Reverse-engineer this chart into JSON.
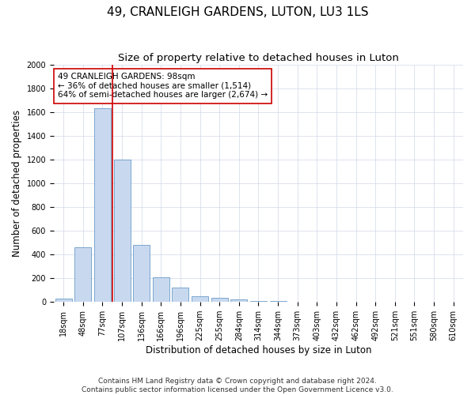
{
  "title": "49, CRANLEIGH GARDENS, LUTON, LU3 1LS",
  "subtitle": "Size of property relative to detached houses in Luton",
  "xlabel": "Distribution of detached houses by size in Luton",
  "ylabel": "Number of detached properties",
  "categories": [
    "18sqm",
    "48sqm",
    "77sqm",
    "107sqm",
    "136sqm",
    "166sqm",
    "196sqm",
    "225sqm",
    "255sqm",
    "284sqm",
    "314sqm",
    "344sqm",
    "373sqm",
    "403sqm",
    "432sqm",
    "462sqm",
    "492sqm",
    "521sqm",
    "551sqm",
    "580sqm",
    "610sqm"
  ],
  "values": [
    30,
    460,
    1630,
    1200,
    480,
    210,
    120,
    50,
    35,
    20,
    10,
    5,
    2,
    1,
    0,
    0,
    0,
    0,
    0,
    0,
    0
  ],
  "bar_color": "#c8d9ef",
  "bar_edge_color": "#6b9bc8",
  "vline_color": "#cc0000",
  "annotation_text": "49 CRANLEIGH GARDENS: 98sqm\n← 36% of detached houses are smaller (1,514)\n64% of semi-detached houses are larger (2,674) →",
  "annotation_box_color": "#ffffff",
  "annotation_box_edge_color": "#cc0000",
  "ylim": [
    0,
    2000
  ],
  "yticks": [
    0,
    200,
    400,
    600,
    800,
    1000,
    1200,
    1400,
    1600,
    1800,
    2000
  ],
  "footnote": "Contains HM Land Registry data © Crown copyright and database right 2024.\nContains public sector information licensed under the Open Government Licence v3.0.",
  "title_fontsize": 11,
  "subtitle_fontsize": 9.5,
  "axis_label_fontsize": 8.5,
  "tick_fontsize": 7,
  "annotation_fontsize": 7.5,
  "footnote_fontsize": 6.5,
  "bg_color": "#ffffff",
  "grid_color": "#d0d8e8"
}
